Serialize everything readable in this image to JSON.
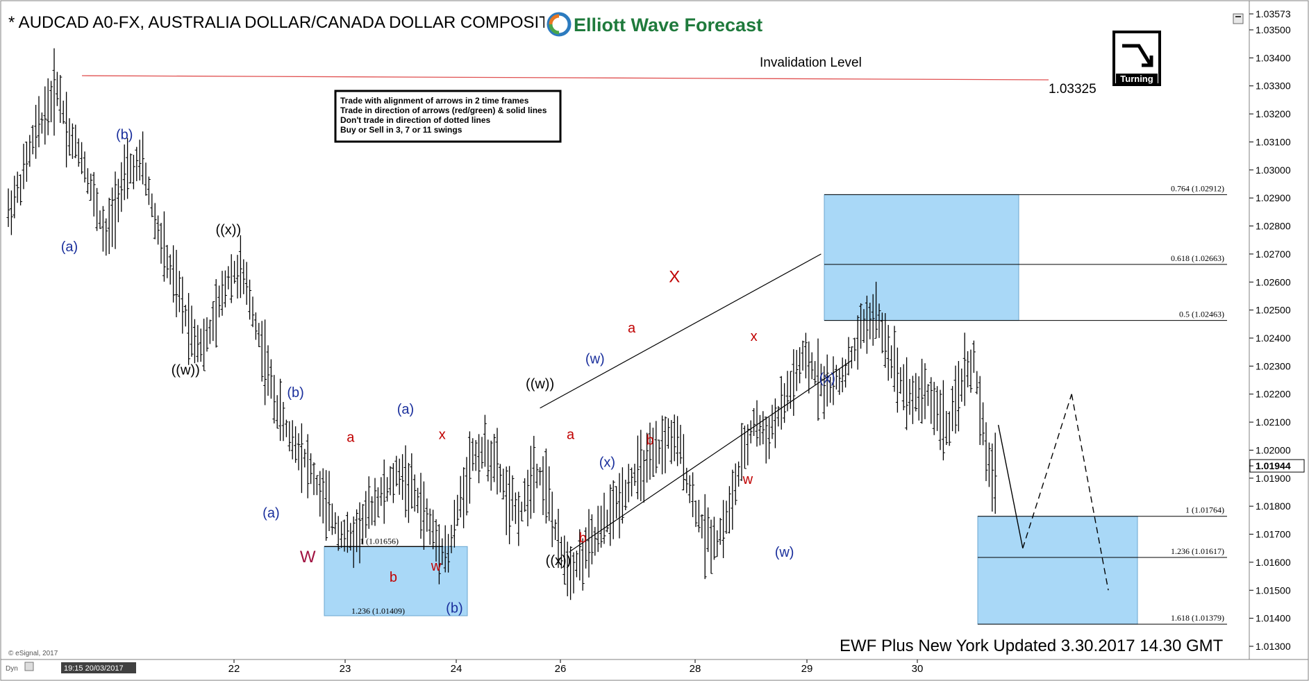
{
  "header": {
    "symbol_title": "* AUDCAD A0-FX, AUSTRALIA DOLLAR/CANADA DOLLAR COMPOSITE",
    "logo_text": "Elliott Wave Forecast",
    "invalidation_label": "Invalidation Level",
    "invalidation_value": "1.03325",
    "turning_label": "Turning"
  },
  "rules_box": {
    "lines": [
      "Trade with alignment of arrows in 2 time frames",
      "Trade in direction of arrows (red/green) & solid lines",
      "Don't trade in direction of dotted lines",
      "Buy or Sell in 3, 7 or 11 swings"
    ]
  },
  "footer": {
    "update_text": "EWF Plus New York Updated 3.30.2017 14.30 GMT",
    "copyright": "© eSignal, 2017",
    "start_timestamp": "19:15 20/03/2017",
    "corner_label": "Dyn"
  },
  "colors": {
    "bars": "#000000",
    "invalidation_line": "#e05050",
    "zone_fill": "#a9d8f7",
    "wave_blue": "#1a2f9c",
    "wave_red": "#c00000",
    "wave_black": "#000000",
    "wave_W": "#a01040"
  },
  "chart_data": {
    "type": "ohlc-bar",
    "instrument": "AUDCAD",
    "price_axis": {
      "min": 1.013,
      "max": 1.0357,
      "ticks": [
        "1.03573",
        "1.03500",
        "1.03400",
        "1.03300",
        "1.03200",
        "1.03100",
        "1.03000",
        "1.02900",
        "1.02800",
        "1.02700",
        "1.02600",
        "1.02500",
        "1.02400",
        "1.02300",
        "1.02200",
        "1.02100",
        "1.02000",
        "1.01944",
        "1.01900",
        "1.01800",
        "1.01700",
        "1.01600",
        "1.01500",
        "1.01400",
        "1.01300"
      ],
      "current_price": "1.01944"
    },
    "time_axis": {
      "start": "19:15 20/03/2017",
      "labels": [
        "22",
        "23",
        "24",
        "26",
        "28",
        "29",
        "30"
      ]
    },
    "invalidation_level": 1.03325,
    "fib_levels_upper": [
      {
        "label": "0.764 (1.02912)",
        "value": 1.02912
      },
      {
        "label": "0.618 (1.02663)",
        "value": 1.02663
      },
      {
        "label": "0.5 (1.02463)",
        "value": 1.02463
      }
    ],
    "fib_levels_lower": [
      {
        "label": "1 (1.01764)",
        "value": 1.01764
      },
      {
        "label": "1.236 (1.01617)",
        "value": 1.01617
      },
      {
        "label": "1.618 (1.01379)",
        "value": 1.01379
      }
    ],
    "fib_levels_left": [
      {
        "label": "1 (1.01656)",
        "value": 1.01656
      },
      {
        "label": "1.236 (1.01409)",
        "value": 1.01409
      }
    ],
    "price_path": [
      {
        "t": 0,
        "p": 1.0285
      },
      {
        "t": 2,
        "p": 1.0295
      },
      {
        "t": 4,
        "p": 1.031
      },
      {
        "t": 6,
        "p": 1.032
      },
      {
        "t": 8,
        "p": 1.033
      },
      {
        "t": 10,
        "p": 1.0312
      },
      {
        "t": 12,
        "p": 1.0305
      },
      {
        "t": 14,
        "p": 1.029
      },
      {
        "t": 16,
        "p": 1.0275
      },
      {
        "t": 18,
        "p": 1.0292
      },
      {
        "t": 20,
        "p": 1.03
      },
      {
        "t": 22,
        "p": 1.0302
      },
      {
        "t": 24,
        "p": 1.0282
      },
      {
        "t": 26,
        "p": 1.0267
      },
      {
        "t": 28,
        "p": 1.0255
      },
      {
        "t": 30,
        "p": 1.0242
      },
      {
        "t": 32,
        "p": 1.0237
      },
      {
        "t": 34,
        "p": 1.0248
      },
      {
        "t": 36,
        "p": 1.0262
      },
      {
        "t": 38,
        "p": 1.0264
      },
      {
        "t": 40,
        "p": 1.025
      },
      {
        "t": 42,
        "p": 1.0232
      },
      {
        "t": 44,
        "p": 1.0215
      },
      {
        "t": 46,
        "p": 1.0205
      },
      {
        "t": 48,
        "p": 1.02
      },
      {
        "t": 50,
        "p": 1.019
      },
      {
        "t": 52,
        "p": 1.018
      },
      {
        "t": 54,
        "p": 1.0172
      },
      {
        "t": 56,
        "p": 1.0168
      },
      {
        "t": 58,
        "p": 1.0174
      },
      {
        "t": 60,
        "p": 1.0182
      },
      {
        "t": 62,
        "p": 1.0186
      },
      {
        "t": 64,
        "p": 1.0192
      },
      {
        "t": 66,
        "p": 1.0186
      },
      {
        "t": 68,
        "p": 1.0178
      },
      {
        "t": 70,
        "p": 1.0168
      },
      {
        "t": 72,
        "p": 1.0163
      },
      {
        "t": 74,
        "p": 1.0182
      },
      {
        "t": 76,
        "p": 1.0198
      },
      {
        "t": 78,
        "p": 1.02
      },
      {
        "t": 80,
        "p": 1.0194
      },
      {
        "t": 82,
        "p": 1.018
      },
      {
        "t": 84,
        "p": 1.0178
      },
      {
        "t": 86,
        "p": 1.0194
      },
      {
        "t": 88,
        "p": 1.0188
      },
      {
        "t": 90,
        "p": 1.0165
      },
      {
        "t": 92,
        "p": 1.0158
      },
      {
        "t": 94,
        "p": 1.0162
      },
      {
        "t": 96,
        "p": 1.0168
      },
      {
        "t": 98,
        "p": 1.0175
      },
      {
        "t": 100,
        "p": 1.0182
      },
      {
        "t": 102,
        "p": 1.019
      },
      {
        "t": 104,
        "p": 1.0194
      },
      {
        "t": 106,
        "p": 1.0198
      },
      {
        "t": 108,
        "p": 1.0205
      },
      {
        "t": 110,
        "p": 1.02
      },
      {
        "t": 112,
        "p": 1.0182
      },
      {
        "t": 114,
        "p": 1.017
      },
      {
        "t": 116,
        "p": 1.0168
      },
      {
        "t": 118,
        "p": 1.0178
      },
      {
        "t": 120,
        "p": 1.0196
      },
      {
        "t": 122,
        "p": 1.021
      },
      {
        "t": 124,
        "p": 1.0205
      },
      {
        "t": 126,
        "p": 1.0212
      },
      {
        "t": 128,
        "p": 1.0222
      },
      {
        "t": 130,
        "p": 1.0232
      },
      {
        "t": 132,
        "p": 1.0228
      },
      {
        "t": 134,
        "p": 1.0222
      },
      {
        "t": 136,
        "p": 1.0225
      },
      {
        "t": 138,
        "p": 1.0233
      },
      {
        "t": 140,
        "p": 1.0245
      },
      {
        "t": 142,
        "p": 1.0248
      },
      {
        "t": 144,
        "p": 1.0236
      },
      {
        "t": 146,
        "p": 1.0225
      },
      {
        "t": 148,
        "p": 1.0218
      },
      {
        "t": 150,
        "p": 1.0222
      },
      {
        "t": 152,
        "p": 1.0214
      },
      {
        "t": 154,
        "p": 1.0207
      },
      {
        "t": 156,
        "p": 1.0225
      },
      {
        "t": 158,
        "p": 1.0232
      },
      {
        "t": 160,
        "p": 1.0198
      },
      {
        "t": 162,
        "p": 1.0188
      }
    ],
    "projection": [
      {
        "t": 162,
        "p": 1.0209,
        "style": "dashed"
      },
      {
        "t": 166,
        "p": 1.0165,
        "style": "solid"
      },
      {
        "t": 174,
        "p": 1.022,
        "style": "dashed"
      },
      {
        "t": 180,
        "p": 1.015,
        "style": "dashed"
      }
    ],
    "wave_labels": [
      {
        "text": "(a)",
        "t": 10,
        "p": 1.0271,
        "color": "blue"
      },
      {
        "text": "(b)",
        "t": 19,
        "p": 1.0311,
        "color": "blue"
      },
      {
        "text": "((w))",
        "t": 29,
        "p": 1.0227,
        "color": "black"
      },
      {
        "text": "((x))",
        "t": 36,
        "p": 1.0277,
        "color": "black"
      },
      {
        "text": "(b)",
        "t": 47,
        "p": 1.0219,
        "color": "blue"
      },
      {
        "text": "(a)",
        "t": 43,
        "p": 1.0176,
        "color": "blue"
      },
      {
        "text": "W",
        "t": 49,
        "p": 1.016,
        "color": "red-purple"
      },
      {
        "text": "a",
        "t": 56,
        "p": 1.0203,
        "color": "red"
      },
      {
        "text": "b",
        "t": 63,
        "p": 1.0153,
        "color": "red"
      },
      {
        "text": "(a)",
        "t": 65,
        "p": 1.0213,
        "color": "blue"
      },
      {
        "text": "x",
        "t": 71,
        "p": 1.0204,
        "color": "red"
      },
      {
        "text": "w",
        "t": 70,
        "p": 1.0157,
        "color": "red"
      },
      {
        "text": "(b)",
        "t": 73,
        "p": 1.0142,
        "color": "blue"
      },
      {
        "text": "((w))",
        "t": 87,
        "p": 1.0222,
        "color": "black"
      },
      {
        "text": "((x))",
        "t": 90,
        "p": 1.0159,
        "color": "black"
      },
      {
        "text": "a",
        "t": 92,
        "p": 1.0204,
        "color": "red"
      },
      {
        "text": "b",
        "t": 94,
        "p": 1.0167,
        "color": "red"
      },
      {
        "text": "(w)",
        "t": 96,
        "p": 1.0231,
        "color": "blue"
      },
      {
        "text": "(x)",
        "t": 98,
        "p": 1.0194,
        "color": "blue"
      },
      {
        "text": "a",
        "t": 102,
        "p": 1.0242,
        "color": "red"
      },
      {
        "text": "b",
        "t": 105,
        "p": 1.0202,
        "color": "red"
      },
      {
        "text": "X",
        "t": 109,
        "p": 1.026,
        "color": "red"
      },
      {
        "text": "x",
        "t": 122,
        "p": 1.0239,
        "color": "red"
      },
      {
        "text": "w",
        "t": 121,
        "p": 1.0188,
        "color": "red"
      },
      {
        "text": "(x)",
        "t": 134,
        "p": 1.0224,
        "color": "blue"
      },
      {
        "text": "(w)",
        "t": 127,
        "p": 1.0162,
        "color": "blue"
      }
    ]
  }
}
